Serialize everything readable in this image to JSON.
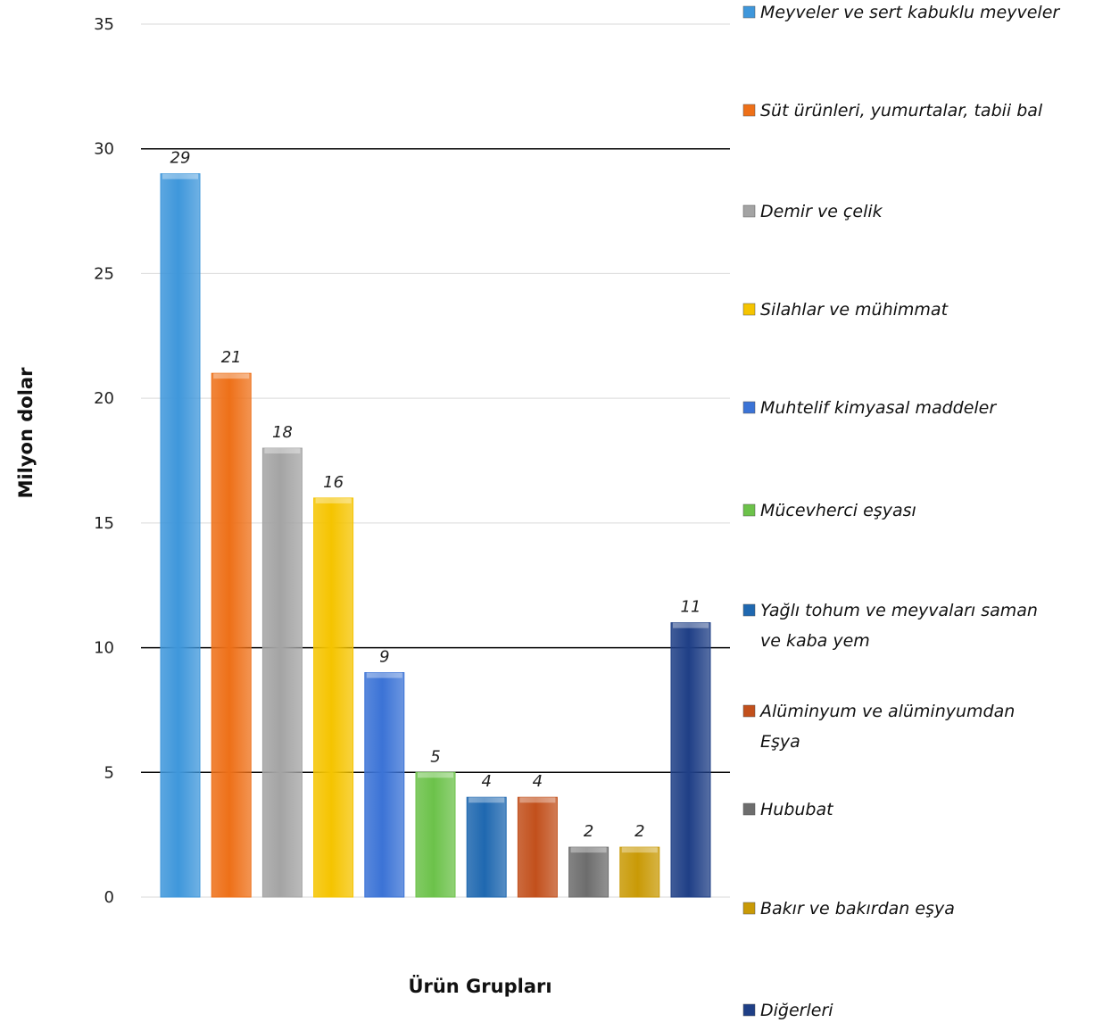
{
  "chart_data": {
    "type": "bar",
    "title": "",
    "xlabel": "Ürün Grupları",
    "ylabel": "Milyon dolar",
    "ylim": [
      0,
      35
    ],
    "yticks": [
      "0",
      "5",
      "10",
      "15",
      "20",
      "25",
      "30",
      "35"
    ],
    "grid": true,
    "legend_position": "right",
    "categories": [
      "Meyveler ve sert kabuklu meyveler",
      "Süt ürünleri, yumurtalar, tabii bal",
      "Demir ve çelik",
      "Silahlar ve mühimmat",
      "Muhtelif kimyasal maddeler",
      "Mücevherci eşyası",
      "Yağlı tohum ve meyvaları saman ve kaba yem",
      "Alüminyum ve alüminyumdan Eşya",
      "Hububat",
      "Bakır ve bakırdan eşya",
      "Diğerleri"
    ],
    "legend_lines": [
      [
        "Meyveler ve sert kabuklu meyveler"
      ],
      [
        "Süt ürünleri, yumurtalar, tabii bal"
      ],
      [
        "Demir ve çelik"
      ],
      [
        "Silahlar ve mühimmat"
      ],
      [
        "Muhtelif kimyasal maddeler"
      ],
      [
        "Mücevherci eşyası"
      ],
      [
        "Yağlı tohum ve meyvaları saman",
        "ve kaba yem"
      ],
      [
        "Alüminyum ve alüminyumdan",
        "Eşya"
      ],
      [
        "Hububat"
      ],
      [
        "Bakır ve bakırdan eşya"
      ],
      [
        "Diğerleri"
      ]
    ],
    "values": [
      29,
      21,
      18,
      16,
      9,
      5,
      4,
      4,
      2,
      2,
      11
    ],
    "colors": [
      "#3f97db",
      "#ee7018",
      "#a4a4a4",
      "#f5c400",
      "#3b73d6",
      "#6cc24a",
      "#1f68b0",
      "#c2501c",
      "#6d6d6d",
      "#c99a06",
      "#1f3f86"
    ]
  }
}
